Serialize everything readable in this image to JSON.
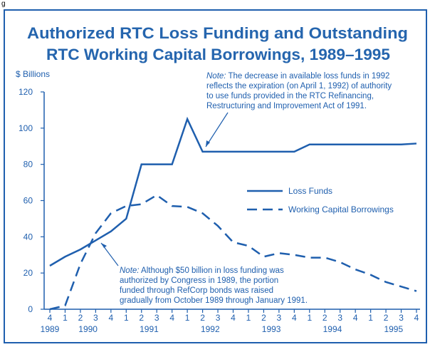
{
  "corner_text": "g",
  "chart_data": {
    "type": "line",
    "title": [
      "Authorized RTC Loss Funding and Outstanding",
      "RTC Working Capital Borrowings, 1989–1995"
    ],
    "y_label": "$ Billions",
    "categories": [
      "4",
      "1",
      "2",
      "3",
      "4",
      "1",
      "2",
      "3",
      "4",
      "1",
      "2",
      "3",
      "4",
      "1",
      "2",
      "3",
      "4",
      "1",
      "2",
      "3",
      "4",
      "1",
      "2",
      "3",
      "4"
    ],
    "year_labels": [
      "1989",
      "1990",
      "1991",
      "1992",
      "1993",
      "1994",
      "1995"
    ],
    "ylim": [
      0,
      120
    ],
    "yticks": [
      0,
      20,
      40,
      60,
      80,
      100,
      120
    ],
    "series": [
      {
        "name": "Loss Funds",
        "color": "#1f5fae",
        "dash": "solid",
        "values": [
          24,
          29,
          33,
          38,
          43,
          50,
          80,
          80,
          80,
          105,
          87,
          87,
          87,
          87,
          87,
          87,
          87,
          91,
          91,
          91,
          91,
          91,
          91,
          91,
          91.5
        ]
      },
      {
        "name": "Working Capital Borrowings",
        "color": "#1f5fae",
        "dash": "dashed",
        "values": [
          0,
          2,
          25,
          42,
          53,
          57,
          58,
          63,
          57,
          56.5,
          53,
          46,
          37,
          35,
          29,
          31,
          30,
          28.5,
          28.5,
          26,
          22,
          19,
          15,
          12.5,
          10
        ]
      }
    ],
    "annotations": [
      {
        "label": "Note:",
        "lines": [
          " The decrease in available loss funds in 1992",
          "reflects the expiration (on April 1, 1992) of authority",
          "to use funds provided in the RTC Refinancing,",
          "Restructuring and Improvement Act of 1991."
        ]
      },
      {
        "label": "Note:",
        "lines": [
          " Although $50 billion in loss funding was",
          "authorized by Congress in 1989, the portion",
          "funded through RefCorp bonds was raised",
          "gradually from October 1989 through January 1991."
        ]
      }
    ]
  }
}
